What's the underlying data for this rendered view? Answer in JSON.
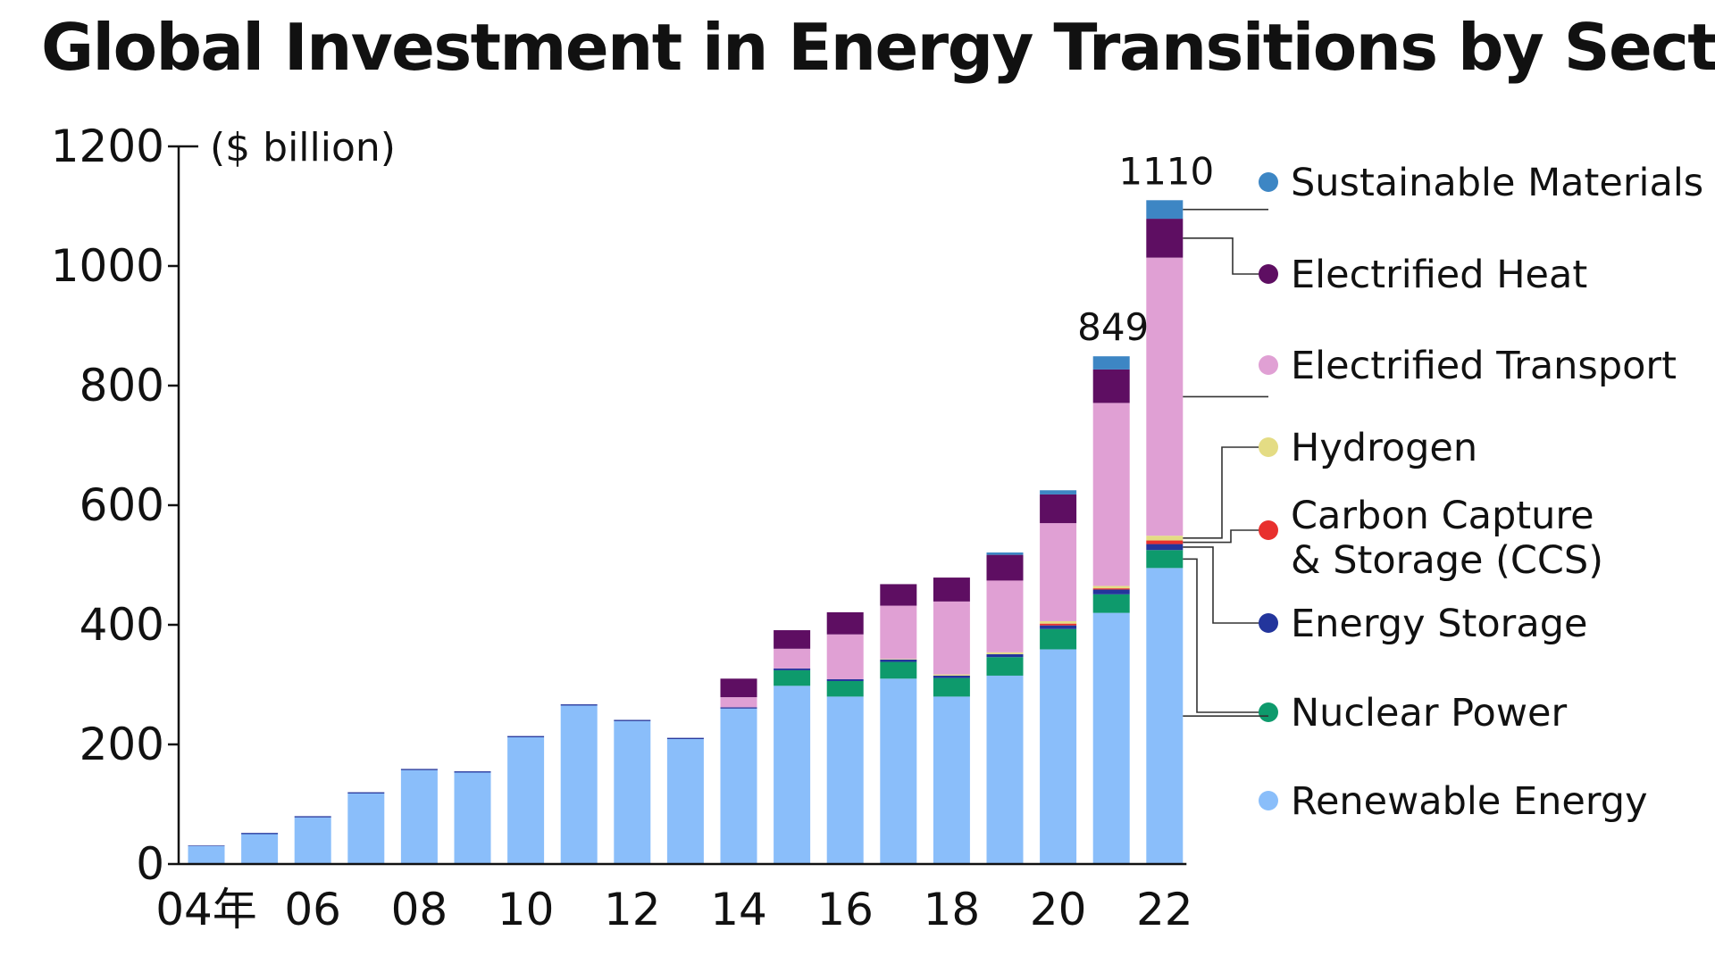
{
  "chart_data": {
    "type": "bar",
    "stacked": true,
    "title": "Global Investment in Energy Transitions by Sector",
    "unit_label": "($ billion)",
    "ylim": [
      0,
      1200
    ],
    "yticks": [
      0,
      200,
      400,
      600,
      800,
      1000,
      1200
    ],
    "categories": [
      "2004",
      "2005",
      "2006",
      "2007",
      "2008",
      "2009",
      "2010",
      "2011",
      "2012",
      "2013",
      "2014",
      "2015",
      "2016",
      "2017",
      "2018",
      "2019",
      "2020",
      "2021",
      "2022"
    ],
    "xtick_labels": [
      {
        "index": 0,
        "label": "04年"
      },
      {
        "index": 2,
        "label": "06"
      },
      {
        "index": 4,
        "label": "08"
      },
      {
        "index": 6,
        "label": "10"
      },
      {
        "index": 8,
        "label": "12"
      },
      {
        "index": 10,
        "label": "14"
      },
      {
        "index": 12,
        "label": "16"
      },
      {
        "index": 14,
        "label": "18"
      },
      {
        "index": 16,
        "label": "20"
      },
      {
        "index": 18,
        "label": "22"
      }
    ],
    "series": [
      {
        "name": "Renewable Energy",
        "color": "#8abefa",
        "values": [
          30,
          50,
          78,
          118,
          157,
          153,
          212,
          265,
          239,
          209,
          260,
          298,
          280,
          310,
          280,
          315,
          359,
          420,
          495
        ]
      },
      {
        "name": "Nuclear Power",
        "color": "#0e9a6c",
        "values": [
          0,
          0,
          0,
          0,
          0,
          0,
          0,
          0,
          0,
          0,
          0,
          26,
          26,
          28,
          31,
          31,
          34,
          31,
          30
        ]
      },
      {
        "name": "Energy Storage",
        "color": "#23359c",
        "values": [
          1,
          2,
          2,
          2,
          2,
          2,
          2,
          2,
          2,
          2,
          2,
          3,
          3,
          4,
          4,
          5,
          6,
          8,
          10
        ]
      },
      {
        "name": "Carbon Capture & Storage (CCS)",
        "color": "#e8302e",
        "values": [
          0,
          0,
          0,
          0,
          0,
          0,
          0,
          0,
          0,
          0,
          0,
          0,
          0,
          0,
          0,
          0,
          3,
          2,
          6
        ]
      },
      {
        "name": "Hydrogen",
        "color": "#e4dc84",
        "values": [
          0,
          0,
          0,
          0,
          0,
          0,
          0,
          0,
          0,
          0,
          0,
          0,
          0,
          1,
          2,
          3,
          4,
          4,
          8
        ]
      },
      {
        "name": "Electrified Transport",
        "color": "#e0a0d4",
        "values": [
          0,
          0,
          0,
          0,
          0,
          0,
          0,
          0,
          0,
          0,
          17,
          33,
          75,
          89,
          122,
          120,
          164,
          306,
          465
        ]
      },
      {
        "name": "Electrified Heat",
        "color": "#5e0e62",
        "values": [
          0,
          0,
          0,
          0,
          0,
          0,
          0,
          0,
          0,
          0,
          31,
          31,
          37,
          36,
          40,
          43,
          48,
          56,
          65
        ]
      },
      {
        "name": "Sustainable Materials",
        "color": "#3d86c4",
        "values": [
          0,
          0,
          0,
          0,
          0,
          0,
          0,
          0,
          0,
          0,
          0,
          0,
          0,
          0,
          0,
          4,
          7,
          22,
          31
        ]
      }
    ],
    "total_labels": [
      {
        "index": 17,
        "label": "849"
      },
      {
        "index": 18,
        "label": "1110"
      }
    ],
    "legend_position": "right",
    "grid": false
  }
}
